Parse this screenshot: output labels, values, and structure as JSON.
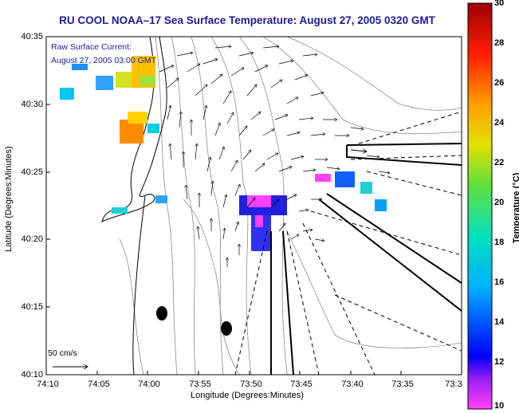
{
  "title": "RU COOL  NOAA–17  Sea Surface Temperature:  August 27, 2005 0320 GMT",
  "xlabel": "Longitude (Degrees:Minutes)",
  "ylabel": "Latitude (Degrees:Minutes)",
  "legend": {
    "line1": "Raw Surface Current:",
    "line2": "August 27, 2005 03:00 GMT",
    "scale_label": "50 cm/s"
  },
  "x_ticks": [
    "74:10",
    "74:05",
    "74:00",
    "73:55",
    "73:50",
    "73:45",
    "73:40",
    "73:35",
    "73:3"
  ],
  "y_ticks": [
    "40:35",
    "40:30",
    "40:25",
    "40:20",
    "40:15",
    "40:10"
  ],
  "colorbar": {
    "label": "Temperature (°C)",
    "ticks": [
      "30",
      "28",
      "26",
      "24",
      "22",
      "20",
      "18",
      "16",
      "14",
      "12",
      "10"
    ],
    "range": [
      10,
      30
    ]
  },
  "colors": {
    "title": "#1a1aa6",
    "vector": "#000000",
    "contour": "#8c8c8c",
    "coast": "#000000"
  }
}
